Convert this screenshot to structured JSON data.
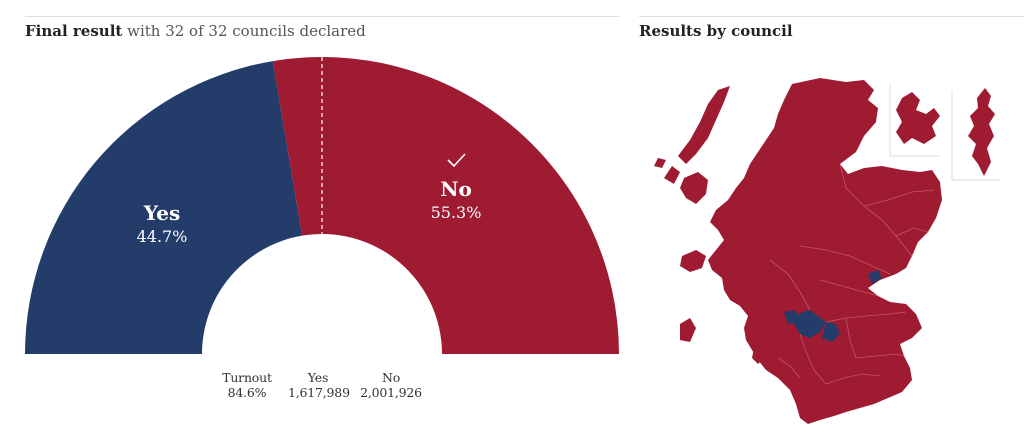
{
  "header": {
    "title_bold": "Final result",
    "title_rest": "with 32 of 32 councils declared"
  },
  "map": {
    "title": "Results by council",
    "colors": {
      "no": "#9e1b32",
      "yes": "#233c6a",
      "border": "#c4566a"
    }
  },
  "stats": {
    "turnout_label": "Turnout",
    "turnout_value": "84.6%",
    "yes_label": "Yes",
    "yes_votes": "1,617,989",
    "no_label": "No",
    "no_votes": "2,001,926"
  },
  "chart_data": {
    "type": "pie",
    "subtype": "half-donut",
    "title": "Final result with 32 of 32 councils declared",
    "categories": [
      "Yes",
      "No"
    ],
    "values": [
      44.7,
      55.3
    ],
    "value_labels": [
      "44.7%",
      "55.3%"
    ],
    "votes": [
      1617989,
      2001926
    ],
    "threshold": 50,
    "winner": "No",
    "colors": {
      "Yes": "#233c6a",
      "No": "#9e1b32"
    }
  }
}
